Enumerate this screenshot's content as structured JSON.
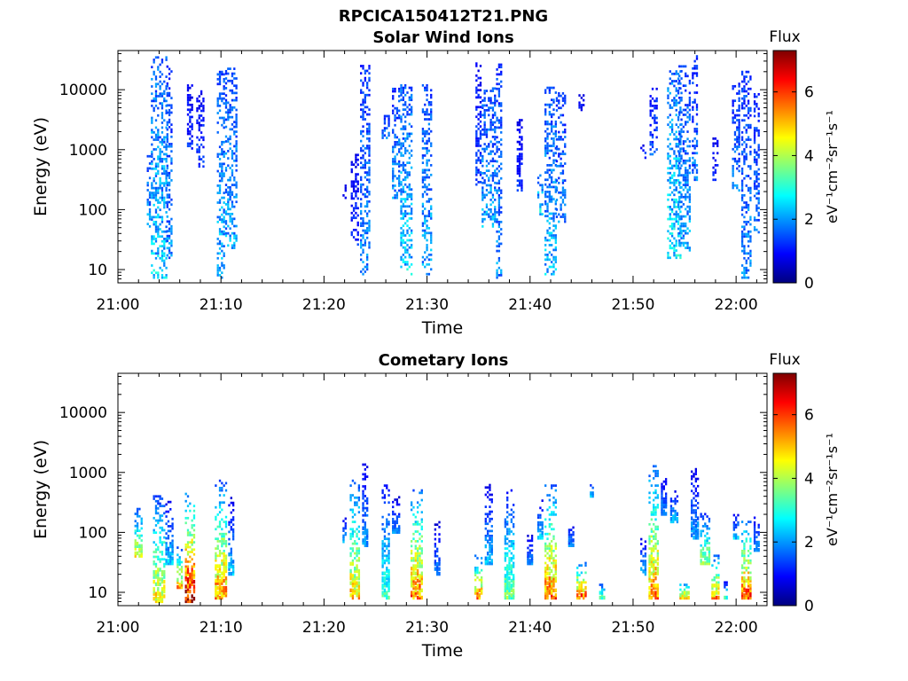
{
  "figure_title": "RPCICA150412T21.PNG",
  "colorbar": {
    "label": "Flux",
    "unit_label": "eV⁻¹cm⁻²sr⁻¹s⁻¹",
    "range": [
      0,
      7.3
    ],
    "ticks": [
      "0",
      "2",
      "4",
      "6"
    ],
    "colormap": [
      "#00007f",
      "#0000ff",
      "#007fff",
      "#00ffff",
      "#7fff7f",
      "#ffff00",
      "#ff7f00",
      "#ff0000",
      "#7f0000"
    ]
  },
  "chart_data": [
    {
      "type": "heatmap",
      "title": "Solar Wind Ions",
      "xlabel": "Time",
      "ylabel": "Energy (eV)",
      "y_scale": "log",
      "xlim": [
        "21:00",
        "22:03"
      ],
      "ylim": [
        6,
        45000
      ],
      "x_ticks": [
        "21:00",
        "21:10",
        "21:20",
        "21:30",
        "21:40",
        "21:50",
        "22:00"
      ],
      "y_ticks": [
        "10",
        "100",
        "1000",
        "10000"
      ],
      "bursts": [
        {
          "time": "21:03",
          "width_min": 0.4,
          "e_lo": 50,
          "e_hi": 900,
          "peak": 2.4
        },
        {
          "time": "21:04",
          "width_min": 1.6,
          "e_lo": 7,
          "e_hi": 35000,
          "peak": 2.8
        },
        {
          "time": "21:05",
          "width_min": 0.6,
          "e_lo": 15,
          "e_hi": 25000,
          "peak": 2.2
        },
        {
          "time": "21:07",
          "width_min": 0.6,
          "e_lo": 1000,
          "e_hi": 12000,
          "peak": 1.4
        },
        {
          "time": "21:08",
          "width_min": 0.8,
          "e_lo": 500,
          "e_hi": 9000,
          "peak": 1.5
        },
        {
          "time": "21:10",
          "width_min": 0.8,
          "e_lo": 7,
          "e_hi": 20000,
          "peak": 2.6
        },
        {
          "time": "21:11",
          "width_min": 1.2,
          "e_lo": 20,
          "e_hi": 24000,
          "peak": 2.4
        },
        {
          "time": "21:22",
          "width_min": 0.4,
          "e_lo": 150,
          "e_hi": 260,
          "peak": 1.0
        },
        {
          "time": "21:23",
          "width_min": 0.8,
          "e_lo": 25,
          "e_hi": 800,
          "peak": 1.4
        },
        {
          "time": "21:24",
          "width_min": 1.0,
          "e_lo": 8,
          "e_hi": 25000,
          "peak": 2.2
        },
        {
          "time": "21:26",
          "width_min": 0.8,
          "e_lo": 1500,
          "e_hi": 3500,
          "peak": 2.0
        },
        {
          "time": "21:27",
          "width_min": 0.8,
          "e_lo": 150,
          "e_hi": 10000,
          "peak": 2.3
        },
        {
          "time": "21:28",
          "width_min": 1.2,
          "e_lo": 8,
          "e_hi": 12000,
          "peak": 2.8
        },
        {
          "time": "21:30",
          "width_min": 1.0,
          "e_lo": 8,
          "e_hi": 12000,
          "peak": 2.5
        },
        {
          "time": "21:35",
          "width_min": 0.6,
          "e_lo": 250,
          "e_hi": 30000,
          "peak": 1.6
        },
        {
          "time": "21:36",
          "width_min": 1.4,
          "e_lo": 50,
          "e_hi": 10000,
          "peak": 2.4
        },
        {
          "time": "21:37",
          "width_min": 0.6,
          "e_lo": 7,
          "e_hi": 25000,
          "peak": 2.2
        },
        {
          "time": "21:39",
          "width_min": 0.6,
          "e_lo": 200,
          "e_hi": 3000,
          "peak": 1.4
        },
        {
          "time": "21:41",
          "width_min": 0.6,
          "e_lo": 80,
          "e_hi": 400,
          "peak": 3.0
        },
        {
          "time": "21:42",
          "width_min": 1.2,
          "e_lo": 8,
          "e_hi": 12000,
          "peak": 2.6
        },
        {
          "time": "21:43",
          "width_min": 1.0,
          "e_lo": 60,
          "e_hi": 9000,
          "peak": 2.1
        },
        {
          "time": "21:45",
          "width_min": 0.6,
          "e_lo": 4000,
          "e_hi": 8000,
          "peak": 1.2
        },
        {
          "time": "21:51",
          "width_min": 0.6,
          "e_lo": 700,
          "e_hi": 1200,
          "peak": 1.5
        },
        {
          "time": "21:52",
          "width_min": 0.8,
          "e_lo": 800,
          "e_hi": 10000,
          "peak": 1.8
        },
        {
          "time": "21:54",
          "width_min": 1.4,
          "e_lo": 15,
          "e_hi": 20000,
          "peak": 3.0
        },
        {
          "time": "21:55",
          "width_min": 1.2,
          "e_lo": 20,
          "e_hi": 25000,
          "peak": 2.4
        },
        {
          "time": "21:56",
          "width_min": 0.6,
          "e_lo": 300,
          "e_hi": 35000,
          "peak": 2.0
        },
        {
          "time": "21:58",
          "width_min": 0.6,
          "e_lo": 300,
          "e_hi": 1500,
          "peak": 1.4
        },
        {
          "time": "22:00",
          "width_min": 0.8,
          "e_lo": 200,
          "e_hi": 12000,
          "peak": 2.0
        },
        {
          "time": "22:01",
          "width_min": 1.0,
          "e_lo": 7,
          "e_hi": 20000,
          "peak": 2.2
        },
        {
          "time": "22:02",
          "width_min": 0.6,
          "e_lo": 40,
          "e_hi": 8000,
          "peak": 2.0
        }
      ]
    },
    {
      "type": "heatmap",
      "title": "Cometary Ions",
      "xlabel": "Time",
      "ylabel": "Energy (eV)",
      "y_scale": "log",
      "xlim": [
        "21:00",
        "22:03"
      ],
      "ylim": [
        6,
        45000
      ],
      "x_ticks": [
        "21:00",
        "21:10",
        "21:20",
        "21:30",
        "21:40",
        "21:50",
        "22:00"
      ],
      "y_ticks": [
        "10",
        "100",
        "1000",
        "10000"
      ],
      "bursts": [
        {
          "time": "21:02",
          "width_min": 0.8,
          "e_lo": 40,
          "e_hi": 250,
          "peak": 4.6
        },
        {
          "time": "21:04",
          "width_min": 1.2,
          "e_lo": 7,
          "e_hi": 400,
          "peak": 5.0
        },
        {
          "time": "21:05",
          "width_min": 0.8,
          "e_lo": 30,
          "e_hi": 350,
          "peak": 2.6
        },
        {
          "time": "21:06",
          "width_min": 0.6,
          "e_lo": 12,
          "e_hi": 55,
          "peak": 5.5
        },
        {
          "time": "21:07",
          "width_min": 1.0,
          "e_lo": 7,
          "e_hi": 450,
          "peak": 7.2
        },
        {
          "time": "21:10",
          "width_min": 1.2,
          "e_lo": 8,
          "e_hi": 700,
          "peak": 5.8
        },
        {
          "time": "21:11",
          "width_min": 0.6,
          "e_lo": 20,
          "e_hi": 400,
          "peak": 2.5
        },
        {
          "time": "21:22",
          "width_min": 0.4,
          "e_lo": 70,
          "e_hi": 180,
          "peak": 2.5
        },
        {
          "time": "21:23",
          "width_min": 1.0,
          "e_lo": 8,
          "e_hi": 700,
          "peak": 5.2
        },
        {
          "time": "21:24",
          "width_min": 0.6,
          "e_lo": 60,
          "e_hi": 1700,
          "peak": 2.2
        },
        {
          "time": "21:26",
          "width_min": 0.8,
          "e_lo": 8,
          "e_hi": 600,
          "peak": 3.4
        },
        {
          "time": "21:27",
          "width_min": 0.8,
          "e_lo": 100,
          "e_hi": 400,
          "peak": 2.0
        },
        {
          "time": "21:29",
          "width_min": 1.2,
          "e_lo": 8,
          "e_hi": 500,
          "peak": 6.0
        },
        {
          "time": "21:31",
          "width_min": 0.6,
          "e_lo": 20,
          "e_hi": 150,
          "peak": 2.0
        },
        {
          "time": "21:35",
          "width_min": 0.8,
          "e_lo": 8,
          "e_hi": 40,
          "peak": 5.8
        },
        {
          "time": "21:36",
          "width_min": 0.8,
          "e_lo": 30,
          "e_hi": 700,
          "peak": 2.4
        },
        {
          "time": "21:38",
          "width_min": 1.0,
          "e_lo": 8,
          "e_hi": 500,
          "peak": 3.8
        },
        {
          "time": "21:40",
          "width_min": 0.6,
          "e_lo": 30,
          "e_hi": 100,
          "peak": 2.0
        },
        {
          "time": "21:41",
          "width_min": 0.6,
          "e_lo": 80,
          "e_hi": 350,
          "peak": 2.6
        },
        {
          "time": "21:42",
          "width_min": 1.2,
          "e_lo": 8,
          "e_hi": 600,
          "peak": 6.0
        },
        {
          "time": "21:44",
          "width_min": 0.6,
          "e_lo": 60,
          "e_hi": 150,
          "peak": 2.0
        },
        {
          "time": "21:45",
          "width_min": 1.0,
          "e_lo": 8,
          "e_hi": 30,
          "peak": 6.3
        },
        {
          "time": "21:46",
          "width_min": 0.4,
          "e_lo": 400,
          "e_hi": 700,
          "peak": 2.5
        },
        {
          "time": "21:47",
          "width_min": 0.6,
          "e_lo": 8,
          "e_hi": 15,
          "peak": 3.6
        },
        {
          "time": "21:51",
          "width_min": 0.6,
          "e_lo": 20,
          "e_hi": 80,
          "peak": 2.4
        },
        {
          "time": "21:52",
          "width_min": 1.0,
          "e_lo": 8,
          "e_hi": 1300,
          "peak": 5.8
        },
        {
          "time": "21:53",
          "width_min": 0.6,
          "e_lo": 200,
          "e_hi": 1000,
          "peak": 2.0
        },
        {
          "time": "21:54",
          "width_min": 0.8,
          "e_lo": 150,
          "e_hi": 500,
          "peak": 2.5
        },
        {
          "time": "21:55",
          "width_min": 1.0,
          "e_lo": 8,
          "e_hi": 15,
          "peak": 5.2
        },
        {
          "time": "21:56",
          "width_min": 0.8,
          "e_lo": 80,
          "e_hi": 1400,
          "peak": 2.2
        },
        {
          "time": "21:57",
          "width_min": 1.0,
          "e_lo": 30,
          "e_hi": 200,
          "peak": 4.2
        },
        {
          "time": "21:58",
          "width_min": 0.8,
          "e_lo": 8,
          "e_hi": 40,
          "peak": 5.6
        },
        {
          "time": "21:59",
          "width_min": 0.4,
          "e_lo": 8,
          "e_hi": 15,
          "peak": 3.2
        },
        {
          "time": "22:00",
          "width_min": 0.6,
          "e_lo": 80,
          "e_hi": 200,
          "peak": 2.5
        },
        {
          "time": "22:01",
          "width_min": 1.0,
          "e_lo": 8,
          "e_hi": 150,
          "peak": 6.2
        },
        {
          "time": "22:02",
          "width_min": 0.6,
          "e_lo": 50,
          "e_hi": 200,
          "peak": 2.2
        }
      ]
    }
  ]
}
